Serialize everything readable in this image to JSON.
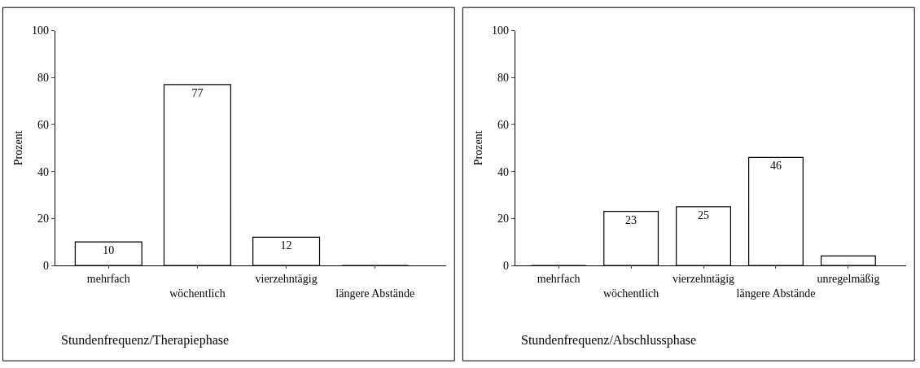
{
  "chart_data": [
    {
      "type": "bar",
      "title": "Stundenfrequenz/Therapiephase",
      "ylabel": "Prozent",
      "categories": [
        "mehrfach",
        "wöchentlich",
        "vierzehntägig",
        "längere Abstände"
      ],
      "values": [
        10,
        77,
        12,
        0
      ],
      "value_labels": [
        "10",
        "77",
        "12",
        null
      ],
      "color": "#ffffff",
      "ylim": [
        0,
        100
      ],
      "yticks": [
        0,
        20,
        40,
        60,
        80,
        100
      ]
    },
    {
      "type": "bar",
      "title": "Stundenfrequenz/Abschlussphase",
      "ylabel": "Prozent",
      "categories": [
        "mehrfach",
        "wöchentlich",
        "vierzehntägig",
        "längere Abstände",
        "unregelmäßig"
      ],
      "values": [
        0,
        23,
        25,
        46,
        4
      ],
      "value_labels": [
        null,
        "23",
        "25",
        "46",
        null
      ],
      "color": "#ffffff",
      "ylim": [
        0,
        100
      ],
      "yticks": [
        0,
        20,
        40,
        60,
        80,
        100
      ]
    }
  ]
}
